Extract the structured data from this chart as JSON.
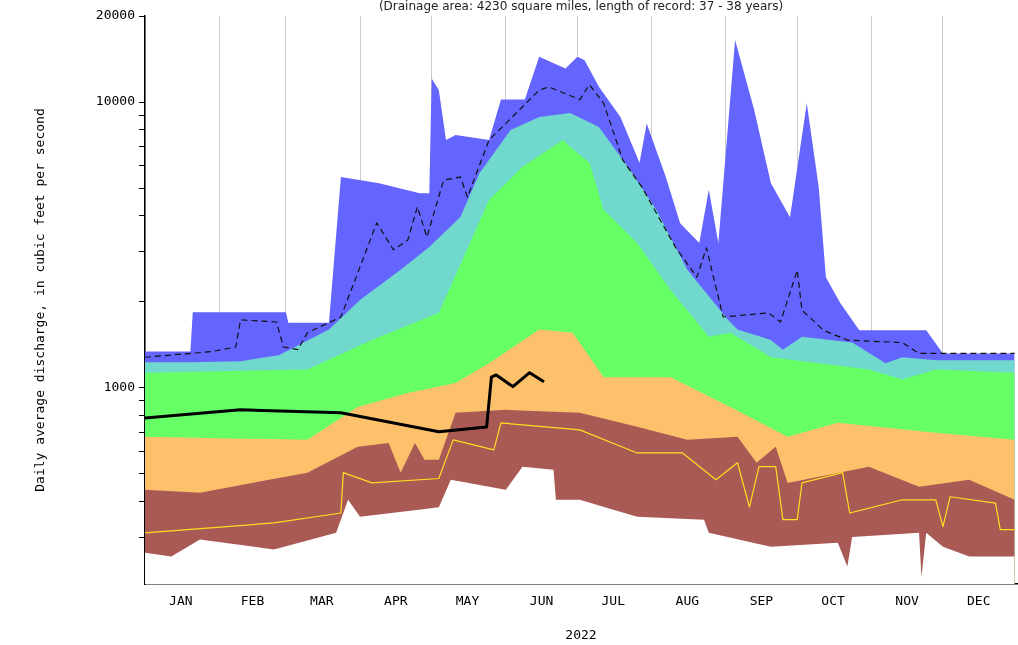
{
  "chart_data": {
    "type": "area",
    "subtitle": "(Drainage area: 4230 square miles, length of record: 37 - 38 years)",
    "xlabel": "2022",
    "ylabel": "Daily average discharge, in cubic feet per second",
    "log": "y",
    "grid": "x",
    "legend": false,
    "xlim": [
      "2022-01-01",
      "2022-12-31"
    ],
    "xticks": [
      {
        "value": "2022-01-01",
        "label": null
      },
      {
        "value": "2022-01-16",
        "label": "JAN"
      },
      {
        "value": "2022-02-01",
        "label": null
      },
      {
        "value": "2022-02-15",
        "label": "FEB"
      },
      {
        "value": "2022-03-01",
        "label": null
      },
      {
        "value": "2022-03-16",
        "label": "MAR"
      },
      {
        "value": "2022-04-01",
        "label": null
      },
      {
        "value": "2022-04-16",
        "label": "APR"
      },
      {
        "value": "2022-05-01",
        "label": null
      },
      {
        "value": "2022-05-16",
        "label": "MAY"
      },
      {
        "value": "2022-06-01",
        "label": null
      },
      {
        "value": "2022-06-16",
        "label": "JUN"
      },
      {
        "value": "2022-07-01",
        "label": null
      },
      {
        "value": "2022-07-16",
        "label": "JUL"
      },
      {
        "value": "2022-08-01",
        "label": null
      },
      {
        "value": "2022-08-16",
        "label": "AUG"
      },
      {
        "value": "2022-09-01",
        "label": null
      },
      {
        "value": "2022-09-16",
        "label": "SEP"
      },
      {
        "value": "2022-10-01",
        "label": null
      },
      {
        "value": "2022-10-16",
        "label": "OCT"
      },
      {
        "value": "2022-11-01",
        "label": null
      },
      {
        "value": "2022-11-16",
        "label": "NOV"
      },
      {
        "value": "2022-12-01",
        "label": null
      },
      {
        "value": "2022-12-16",
        "label": "DEC"
      }
    ],
    "ylim": [
      206,
      20000
    ],
    "yticks": [
      {
        "value": 300,
        "label": null
      },
      {
        "value": 400,
        "label": null
      },
      {
        "value": 500,
        "label": null
      },
      {
        "value": 600,
        "label": null
      },
      {
        "value": 700,
        "label": null
      },
      {
        "value": 800,
        "label": null
      },
      {
        "value": 900,
        "label": null
      },
      1000,
      {
        "value": 2000,
        "label": null
      },
      {
        "value": 3000,
        "label": null
      },
      {
        "value": 4000,
        "label": null
      },
      {
        "value": 5000,
        "label": null
      },
      {
        "value": 6000,
        "label": null
      },
      {
        "value": 7000,
        "label": null
      },
      {
        "value": 8000,
        "label": null
      },
      {
        "value": 9000,
        "label": null
      },
      10000,
      20000
    ],
    "series": [
      {
        "color": "#ffffff",
        "x": [
          "2022-01-01",
          "2022-01-12",
          "2022-01-24",
          "2022-02-24",
          "2022-03-22",
          "2022-03-27",
          "2022-04-01",
          "2022-05-04",
          "2022-05-09",
          "2022-06-01",
          "2022-06-08",
          "2022-06-21",
          "2022-06-22",
          "2022-07-02",
          "2022-07-26",
          "2022-08-23",
          "2022-08-25",
          "2022-09-20",
          "2022-10-18",
          "2022-10-22",
          "2022-10-24",
          "2022-11-21",
          "2022-11-22",
          "2022-11-24",
          "2022-12-01",
          "2022-12-12",
          "2022-12-31"
        ],
        "values": [
          265,
          257,
          295,
          272,
          311,
          406,
          354,
          382,
          477,
          440,
          530,
          517,
          406,
          406,
          354,
          346,
          311,
          278,
          287,
          237,
          301,
          311,
          218,
          311,
          278,
          257,
          257
        ]
      },
      {
        "color": "#aa5a55",
        "x": [
          "2022-01-01",
          "2022-01-24",
          "2022-03-10",
          "2022-03-31",
          "2022-04-13",
          "2022-04-18",
          "2022-04-24",
          "2022-04-28",
          "2022-05-04",
          "2022-05-11",
          "2022-06-01",
          "2022-07-02",
          "2022-07-26",
          "2022-08-16",
          "2022-09-06",
          "2022-09-14",
          "2022-09-22",
          "2022-09-27",
          "2022-10-31",
          "2022-11-21",
          "2022-12-12",
          "2022-12-31"
        ],
        "values": [
          440,
          430,
          505,
          622,
          642,
          505,
          642,
          560,
          560,
          818,
          838,
          818,
          731,
          658,
          674,
          547,
          622,
          465,
          530,
          451,
          477,
          406
        ]
      },
      {
        "color": "#fdc06b",
        "x": [
          "2022-01-01",
          "2022-03-10",
          "2022-03-31",
          "2022-04-21",
          "2022-05-11",
          "2022-05-25",
          "2022-06-15",
          "2022-06-29",
          "2022-07-12",
          "2022-08-09",
          "2022-09-03",
          "2022-09-27",
          "2022-10-18",
          "2022-11-28",
          "2022-12-31"
        ],
        "values": [
          674,
          658,
          858,
          960,
          1040,
          1220,
          1600,
          1560,
          1090,
          1090,
          858,
          674,
          755,
          696,
          658
        ]
      },
      {
        "color": "#66ff66",
        "x": [
          "2022-01-01",
          "2022-03-10",
          "2022-04-06",
          "2022-05-04",
          "2022-05-25",
          "2022-06-08",
          "2022-06-25",
          "2022-06-28",
          "2022-07-06",
          "2022-07-12",
          "2022-07-26",
          "2022-08-09",
          "2022-08-25",
          "2022-09-03",
          "2022-09-20",
          "2022-10-31",
          "2022-11-14",
          "2022-11-28",
          "2022-12-31"
        ],
        "values": [
          1130,
          1160,
          1470,
          1830,
          4540,
          5940,
          7360,
          6960,
          6130,
          4200,
          3210,
          2200,
          1510,
          1560,
          1280,
          1160,
          1070,
          1160,
          1130
        ]
      },
      {
        "color": "#70d8cc",
        "x": [
          "2022-01-01",
          "2022-01-21",
          "2022-02-10",
          "2022-02-26",
          "2022-03-19",
          "2022-04-01",
          "2022-04-18",
          "2022-04-30",
          "2022-05-13",
          "2022-05-21",
          "2022-06-03",
          "2022-06-15",
          "2022-06-28",
          "2022-07-10",
          "2022-07-23",
          "2022-08-03",
          "2022-08-16",
          "2022-09-02",
          "2022-09-06",
          "2022-09-20",
          "2022-09-25",
          "2022-10-03",
          "2022-10-24",
          "2022-11-07",
          "2022-11-14",
          "2022-11-28",
          "2022-12-12",
          "2022-12-31"
        ],
        "values": [
          1230,
          1230,
          1240,
          1300,
          1600,
          2030,
          2590,
          3110,
          3960,
          5640,
          7980,
          8870,
          9150,
          8180,
          5800,
          4200,
          2590,
          1730,
          1600,
          1470,
          1360,
          1510,
          1440,
          1220,
          1280,
          1250,
          1250,
          1250
        ]
      },
      {
        "color": "#6464ff",
        "x": [
          "2022-01-01",
          "2022-01-20",
          "2022-01-21",
          "2022-03-01",
          "2022-03-02",
          "2022-03-19",
          "2022-03-24",
          "2022-04-09",
          "2022-04-26",
          "2022-04-30",
          "2022-05-01",
          "2022-05-04",
          "2022-05-07",
          "2022-05-11",
          "2022-05-25",
          "2022-05-30",
          "2022-06-09",
          "2022-06-15",
          "2022-06-26",
          "2022-07-01",
          "2022-07-04",
          "2022-07-10",
          "2022-07-19",
          "2022-07-27",
          "2022-07-30",
          "2022-08-07",
          "2022-08-13",
          "2022-08-21",
          "2022-08-25",
          "2022-08-29",
          "2022-09-05",
          "2022-09-13",
          "2022-09-20",
          "2022-09-28",
          "2022-10-05",
          "2022-10-10",
          "2022-10-13",
          "2022-10-19",
          "2022-10-27",
          "2022-11-13",
          "2022-11-24",
          "2022-12-01",
          "2022-12-31"
        ],
        "values": [
          1340,
          1340,
          1840,
          1840,
          1690,
          1690,
          5470,
          5200,
          4800,
          4800,
          12100,
          11000,
          7360,
          7670,
          7360,
          10200,
          10200,
          14400,
          13100,
          14400,
          14000,
          11300,
          8870,
          6130,
          8420,
          5470,
          3770,
          3210,
          4930,
          3210,
          16500,
          9370,
          5200,
          3950,
          9900,
          5040,
          2440,
          1980,
          1590,
          1590,
          1590,
          1320,
          1320
        ]
      },
      {
        "type": "line",
        "color": "#111111",
        "line_style": "dashed",
        "x": [
          "2022-01-01",
          "2022-01-29",
          "2022-02-08",
          "2022-02-10",
          "2022-02-25",
          "2022-02-28",
          "2022-03-06",
          "2022-03-10",
          "2022-03-24",
          "2022-04-01",
          "2022-04-08",
          "2022-04-15",
          "2022-04-21",
          "2022-04-25",
          "2022-04-29",
          "2022-05-06",
          "2022-05-13",
          "2022-05-16",
          "2022-05-25",
          "2022-06-15",
          "2022-06-19",
          "2022-07-02",
          "2022-07-06",
          "2022-07-12",
          "2022-07-20",
          "2022-07-28",
          "2022-08-11",
          "2022-08-20",
          "2022-08-24",
          "2022-08-31",
          "2022-09-19",
          "2022-09-24",
          "2022-10-01",
          "2022-10-03",
          "2022-10-12",
          "2022-10-22",
          "2022-11-14",
          "2022-11-21",
          "2022-12-31"
        ],
        "values": [
          1280,
          1340,
          1390,
          1730,
          1700,
          1390,
          1360,
          1560,
          1770,
          2650,
          3780,
          3040,
          3290,
          4300,
          3370,
          5330,
          5470,
          4650,
          7360,
          11000,
          11300,
          10200,
          11500,
          9900,
          6260,
          5040,
          3110,
          2440,
          3090,
          1770,
          1830,
          1700,
          2580,
          1870,
          1590,
          1470,
          1440,
          1320,
          1320
        ]
      },
      {
        "type": "line",
        "color": "#ffdd22",
        "x": [
          "2022-01-01",
          "2022-02-24",
          "2022-03-24",
          "2022-03-25",
          "2022-04-06",
          "2022-05-04",
          "2022-05-10",
          "2022-05-27",
          "2022-05-30",
          "2022-07-02",
          "2022-07-26",
          "2022-08-14",
          "2022-08-28",
          "2022-09-06",
          "2022-09-11",
          "2022-09-15",
          "2022-09-22",
          "2022-09-25",
          "2022-10-01",
          "2022-10-03",
          "2022-10-20",
          "2022-10-23",
          "2022-11-14",
          "2022-11-28",
          "2022-12-01",
          "2022-12-04",
          "2022-12-23",
          "2022-12-25",
          "2022-12-31"
        ],
        "values": [
          311,
          337,
          365,
          505,
          465,
          482,
          658,
          607,
          754,
          713,
          592,
          592,
          477,
          547,
          383,
          530,
          530,
          346,
          346,
          465,
          505,
          365,
          406,
          406,
          327,
          416,
          395,
          319,
          319
        ]
      },
      {
        "type": "line",
        "color": "#000000",
        "x": [
          "2022-01-01",
          "2022-02-10",
          "2022-03-24",
          "2022-05-04",
          "2022-05-24",
          "2022-05-26",
          "2022-05-28",
          "2022-06-04",
          "2022-06-11",
          "2022-06-17"
        ],
        "values": [
          785,
          838,
          818,
          702,
          730,
          1090,
          1110,
          1010,
          1130,
          1050
        ]
      }
    ]
  }
}
